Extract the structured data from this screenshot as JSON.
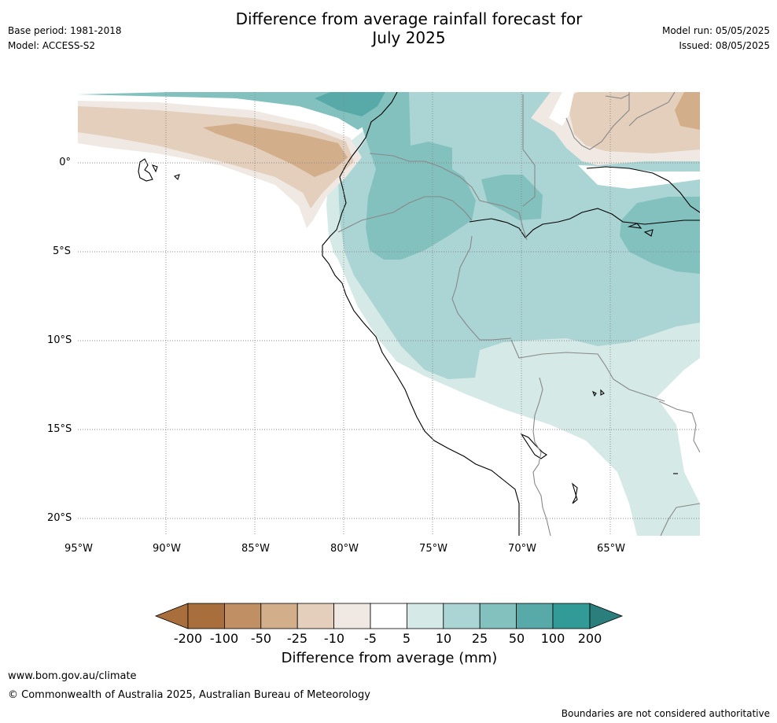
{
  "header": {
    "base_period": "Base period: 1981-2018",
    "model": "Model: ACCESS-S2",
    "title_line1": "Difference from average rainfall forecast for",
    "title_line2": "July 2025",
    "model_run": "Model run: 05/05/2025",
    "issued": "Issued: 08/05/2025"
  },
  "map": {
    "lat_labels": [
      "0°",
      "5°S",
      "10°S",
      "15°S",
      "20°S"
    ],
    "lon_labels": [
      "95°W",
      "90°W",
      "85°W",
      "80°W",
      "75°W",
      "70°W",
      "65°W"
    ],
    "colors": {
      "c_neg200": "#a86e3b",
      "c_neg100": "#c09064",
      "c_neg50": "#d2ae8b",
      "c_neg25": "#e3cfbb",
      "c_neg10": "#efe8e3",
      "c_neutral": "#ffffff",
      "c_5": "#d5e9e7",
      "c_10": "#abd5d4",
      "c_25": "#83c1bf",
      "c_50": "#58aaa9",
      "c_100": "#339b97",
      "c_200": "#2a7e7c"
    }
  },
  "colorbar": {
    "tick_labels": [
      "-200",
      "-100",
      "-50",
      "-25",
      "-10",
      "-5",
      "5",
      "10",
      "25",
      "50",
      "100",
      "200"
    ],
    "title": "Difference from average (mm)"
  },
  "footer": {
    "url": "www.bom.gov.au/climate",
    "copyright": "© Commonwealth of Australia 2025, Australian Bureau of Meteorology",
    "disclaimer": "Boundaries are not considered authoritative"
  }
}
